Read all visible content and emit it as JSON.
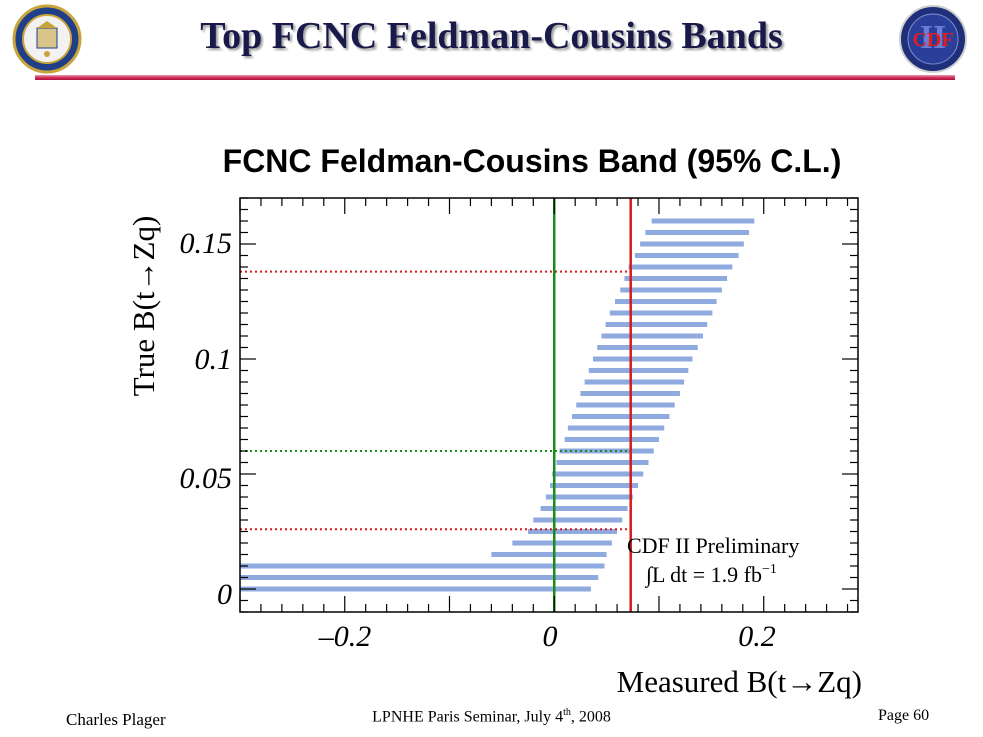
{
  "slide": {
    "title": "Top FCNC Feldman-Cousins Bands",
    "footer_left": "Charles Plager",
    "footer_center": "LPNHE Paris Seminar, July 4th, 2008",
    "footer_right": "Page 60",
    "logo_right_text": "CDF",
    "logo_right_numeral": "II",
    "accent_color": "#c8184a"
  },
  "chart_data": {
    "type": "band",
    "title": "FCNC Feldman-Cousins Band (95% C.L.)",
    "xlabel": "Measured B(t→Zq)",
    "ylabel": "True B(t→Zq)",
    "xlim": [
      -0.3,
      0.29
    ],
    "ylim": [
      -0.01,
      0.17
    ],
    "x_ticks": [
      -0.2,
      0,
      0.2
    ],
    "x_tick_labels": [
      "–0.2",
      "0",
      "0.2"
    ],
    "y_ticks": [
      0,
      0.05,
      0.1,
      0.15
    ],
    "y_tick_labels": [
      "0",
      "0.05",
      "0.1",
      "0.15"
    ],
    "band_color": "#8eaadf",
    "band": {
      "true_values": [
        0.0,
        0.005,
        0.01,
        0.015,
        0.02,
        0.025,
        0.03,
        0.035,
        0.04,
        0.045,
        0.05,
        0.055,
        0.06,
        0.065,
        0.07,
        0.075,
        0.08,
        0.085,
        0.09,
        0.095,
        0.1,
        0.105,
        0.11,
        0.115,
        0.12,
        0.125,
        0.13,
        0.135,
        0.14,
        0.145,
        0.15,
        0.155,
        0.16
      ],
      "lower": [
        -0.3,
        -0.3,
        -0.3,
        -0.06,
        -0.04,
        -0.025,
        -0.02,
        -0.013,
        -0.008,
        -0.004,
        -0.002,
        0.002,
        0.005,
        0.01,
        0.013,
        0.017,
        0.021,
        0.025,
        0.029,
        0.033,
        0.037,
        0.041,
        0.045,
        0.049,
        0.053,
        0.058,
        0.063,
        0.067,
        0.071,
        0.077,
        0.082,
        0.087,
        0.093
      ],
      "upper": [
        0.035,
        0.042,
        0.048,
        0.05,
        0.055,
        0.06,
        0.065,
        0.07,
        0.075,
        0.08,
        0.085,
        0.09,
        0.095,
        0.1,
        0.105,
        0.11,
        0.115,
        0.12,
        0.124,
        0.128,
        0.132,
        0.137,
        0.142,
        0.146,
        0.151,
        0.155,
        0.16,
        0.165,
        0.17,
        0.176,
        0.181,
        0.186,
        0.191
      ]
    },
    "vertical_lines": [
      {
        "x": 0.0,
        "color": "#1a8a1a"
      },
      {
        "x": 0.073,
        "color": "#d41a1a"
      }
    ],
    "dotted_lines": [
      {
        "y": 0.138,
        "color": "#d41a1a"
      },
      {
        "y": 0.06,
        "color": "#1a8a1a"
      },
      {
        "y": 0.026,
        "color": "#d41a1a"
      }
    ],
    "annotations": {
      "line1": "CDF II Preliminary",
      "line2_prefix": "∫L dt = 1.9 fb",
      "line2_sup": "−1"
    }
  }
}
